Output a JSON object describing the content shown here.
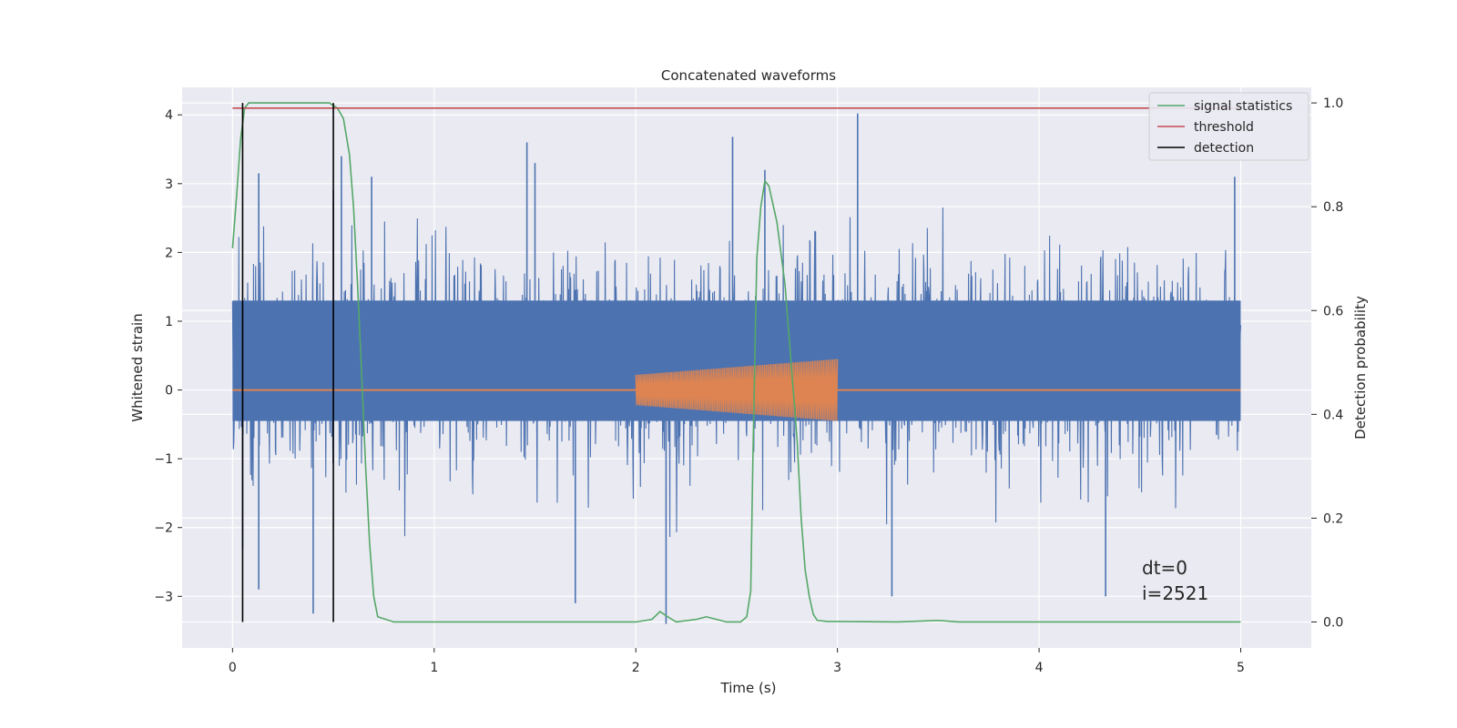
{
  "chart_data": {
    "type": "line",
    "title": "Concatenated waveforms",
    "xlabel": "Time (s)",
    "ylabel": "Whitened strain",
    "ylabel_right": "Detection probability",
    "xlim": [
      -0.25,
      5.35
    ],
    "ylim": [
      -3.75,
      4.4
    ],
    "ylim_right": [
      -0.05,
      1.03
    ],
    "x_ticks": [
      0,
      1,
      2,
      3,
      4,
      5
    ],
    "y_ticks": [
      -3,
      -2,
      -1,
      0,
      1,
      2,
      3,
      4
    ],
    "y_right_ticks": [
      0.0,
      0.2,
      0.4,
      0.6,
      0.8,
      1.0
    ],
    "grid": true,
    "legend_position": "top-right",
    "annotation": [
      "dt=0",
      "i=2521"
    ],
    "strain_noise": {
      "x_range": [
        0,
        5
      ],
      "typical_band": [
        -0.45,
        1.3
      ],
      "peak_max": 4.02,
      "peak_min": -3.45,
      "spikes": [
        {
          "x": 0.13,
          "y": 3.15
        },
        {
          "x": 0.5,
          "y": 2.9
        },
        {
          "x": 0.54,
          "y": 3.4
        },
        {
          "x": 0.69,
          "y": 3.1
        },
        {
          "x": 1.46,
          "y": 3.6
        },
        {
          "x": 1.5,
          "y": 3.3
        },
        {
          "x": 2.48,
          "y": 3.68
        },
        {
          "x": 2.64,
          "y": 3.2
        },
        {
          "x": 3.1,
          "y": 4.02
        },
        {
          "x": 4.97,
          "y": 3.1
        },
        {
          "x": 0.4,
          "y": -3.25
        },
        {
          "x": 1.7,
          "y": -3.1
        },
        {
          "x": 2.15,
          "y": -3.4
        },
        {
          "x": 3.27,
          "y": -3.0
        },
        {
          "x": 4.33,
          "y": -3.0
        },
        {
          "x": 0.05,
          "y": -2.3
        },
        {
          "x": 0.13,
          "y": -2.9
        }
      ]
    },
    "injected_signal": {
      "x_range": [
        2.0,
        3.0
      ],
      "amplitude_start": 0.22,
      "amplitude_end": 0.45
    },
    "series": [
      {
        "name": "signal statistics",
        "color": "#55a868",
        "axis": "right",
        "x": [
          0,
          0.02,
          0.04,
          0.06,
          0.08,
          0.1,
          0.2,
          0.3,
          0.4,
          0.48,
          0.52,
          0.55,
          0.58,
          0.6,
          0.62,
          0.64,
          0.66,
          0.68,
          0.7,
          0.72,
          0.8,
          1.0,
          1.5,
          2.0,
          2.08,
          2.12,
          2.15,
          2.2,
          2.3,
          2.35,
          2.4,
          2.45,
          2.52,
          2.55,
          2.57,
          2.58,
          2.6,
          2.62,
          2.64,
          2.66,
          2.7,
          2.74,
          2.78,
          2.8,
          2.82,
          2.84,
          2.86,
          2.88,
          2.9,
          2.95,
          3.0,
          3.3,
          3.5,
          3.6,
          4.0,
          4.5,
          5.0
        ],
        "y": [
          0.72,
          0.82,
          0.93,
          0.99,
          1.0,
          1.0,
          1.0,
          1.0,
          1.0,
          1.0,
          0.99,
          0.97,
          0.9,
          0.8,
          0.65,
          0.48,
          0.3,
          0.15,
          0.05,
          0.01,
          0.0,
          0.0,
          0.0,
          0.0,
          0.005,
          0.02,
          0.012,
          0.0,
          0.005,
          0.01,
          0.005,
          0.0,
          0.0,
          0.01,
          0.06,
          0.3,
          0.7,
          0.8,
          0.85,
          0.84,
          0.77,
          0.65,
          0.45,
          0.35,
          0.2,
          0.1,
          0.05,
          0.015,
          0.003,
          0.001,
          0.001,
          0.0,
          0.003,
          0.0,
          0.0,
          0.0,
          0.0
        ]
      },
      {
        "name": "threshold",
        "color": "#c44e52",
        "axis": "right",
        "x": [
          0,
          5
        ],
        "y": [
          0.99,
          0.99
        ]
      },
      {
        "name": "detection",
        "color": "#000000",
        "axis": "right",
        "type": "vlines",
        "x": [
          0.05,
          0.5
        ],
        "y_range": [
          0.0,
          1.0
        ]
      }
    ],
    "noise_color": "#4c72b0",
    "signal_color": "#dd8452"
  }
}
